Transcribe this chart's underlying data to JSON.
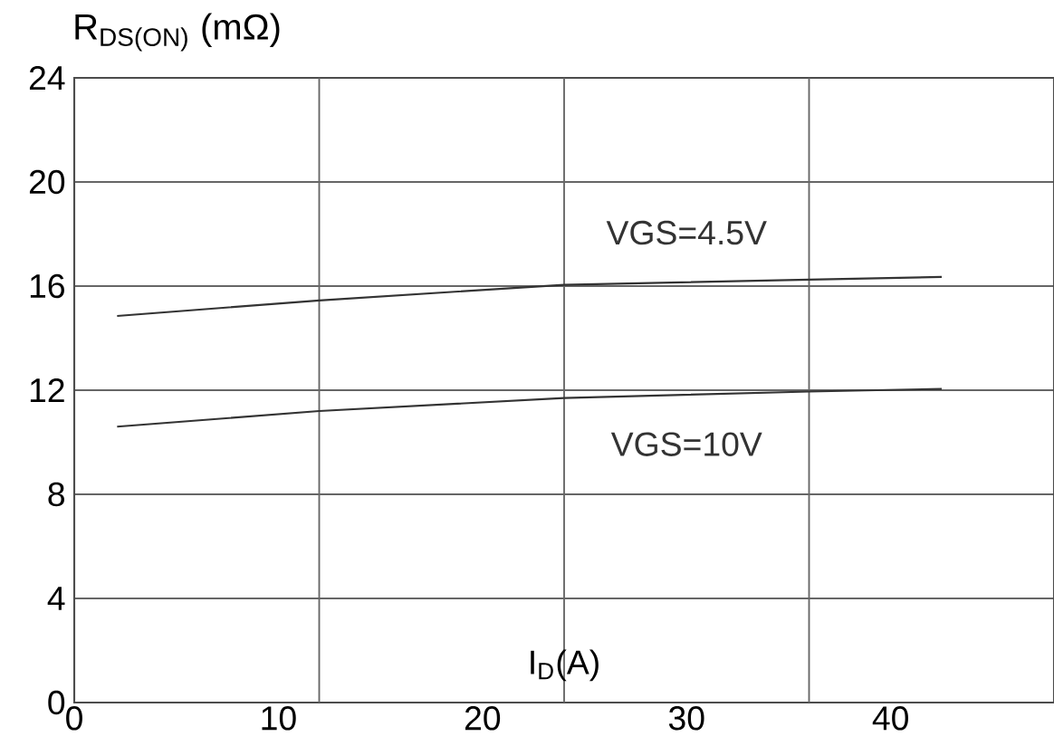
{
  "chart_data": {
    "type": "line",
    "xlabel": "I$_{D}$(A)",
    "ylabel": "R$_{DS(ON)}$ (mΩ)",
    "xlim": [
      0,
      48
    ],
    "ylim": [
      0,
      24
    ],
    "xticks": [
      0,
      10,
      20,
      30,
      40
    ],
    "yticks": [
      0,
      4,
      8,
      12,
      16,
      20,
      24
    ],
    "grid": "y",
    "ref_lines": [
      {
        "axis": "x",
        "value": 12
      },
      {
        "axis": "x",
        "value": 24
      },
      {
        "axis": "x",
        "value": 36
      }
    ],
    "series": [
      {
        "name": "VGS=4.5V",
        "color": "#333333",
        "x": [
          2.1,
          12,
          24,
          36,
          42.5
        ],
        "values": [
          14.85,
          15.45,
          16.05,
          16.25,
          16.35
        ]
      },
      {
        "name": "VGS=10V",
        "color": "#333333",
        "x": [
          2.1,
          12,
          24,
          36,
          42.5
        ],
        "values": [
          10.6,
          11.2,
          11.7,
          11.95,
          12.05
        ]
      }
    ]
  }
}
